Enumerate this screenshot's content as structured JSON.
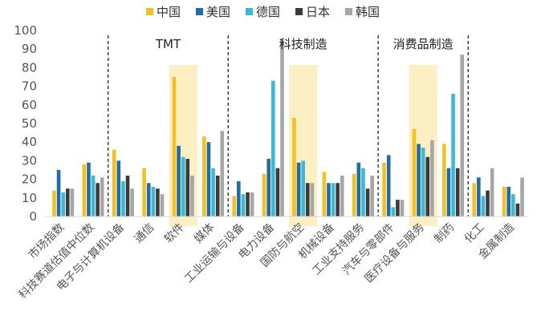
{
  "chart_data": {
    "type": "bar",
    "title": "",
    "xlabel": "",
    "ylabel": "",
    "ylim": [
      0,
      100
    ],
    "yticks": [
      "0",
      "10",
      "20",
      "30",
      "40",
      "50",
      "60",
      "70",
      "80",
      "90",
      "100"
    ],
    "grid": false,
    "legend_position": "top-center",
    "categories": [
      "市场指数",
      "科技赛道估值中位数",
      "电子与计算机设备",
      "通信",
      "软件",
      "媒体",
      "工业运输与设备",
      "电力设备",
      "国防与航空",
      "机械设备",
      "工业支持服务",
      "汽车与零部件",
      "医疗设备与服务",
      "制药",
      "化工",
      "金属制造"
    ],
    "series": [
      {
        "name": "中国",
        "color": "#F5C11E",
        "values": [
          14,
          28,
          36,
          26,
          75,
          43,
          11,
          23,
          53,
          24,
          23,
          29,
          47,
          39,
          18,
          16
        ]
      },
      {
        "name": "美国",
        "color": "#1F6CA8",
        "values": [
          25,
          29,
          30,
          18,
          38,
          40,
          19,
          31,
          29,
          18,
          29,
          33,
          39,
          26,
          21,
          16
        ]
      },
      {
        "name": "德国",
        "color": "#3CB8D8",
        "values": [
          13,
          22,
          19,
          16,
          32,
          26,
          12,
          73,
          30,
          18,
          26,
          5,
          37,
          66,
          11,
          12
        ]
      },
      {
        "name": "日本",
        "color": "#3A3A3A",
        "values": [
          15,
          18,
          22,
          15,
          31,
          22,
          13,
          26,
          18,
          18,
          15,
          9,
          32,
          26,
          14,
          7
        ]
      },
      {
        "name": "韩国",
        "color": "#A6A6A6",
        "values": [
          15,
          21,
          15,
          12,
          22,
          46,
          13,
          95,
          18,
          22,
          22,
          9,
          41,
          87,
          26,
          21
        ]
      }
    ],
    "sections": [
      {
        "label": "TMT"
      },
      {
        "label": "科技制造"
      },
      {
        "label": "消费品制造"
      }
    ],
    "highlight_color": "#FCEFC4",
    "highlighted_categories": [
      "软件",
      "国防与航空",
      "医疗设备与服务"
    ]
  }
}
